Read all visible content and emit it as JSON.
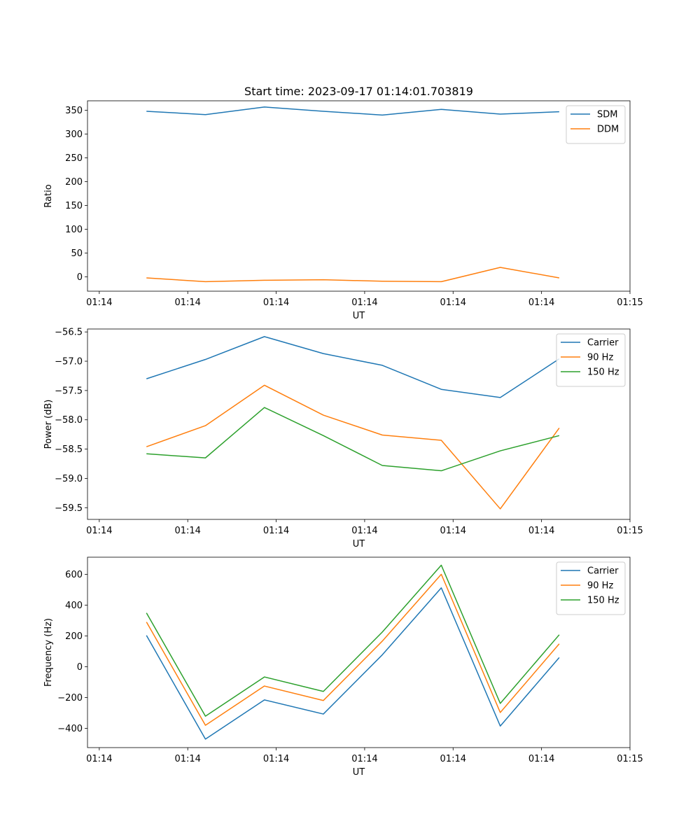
{
  "chart_data": [
    {
      "type": "line",
      "title": "Start time: 2023-09-17 01:14:01.703819",
      "xlabel": "UT",
      "ylabel": "Ratio",
      "x": [
        1,
        2,
        3,
        4,
        5,
        6,
        7,
        8
      ],
      "xlim": [
        0,
        9.2
      ],
      "ylim": [
        -30,
        370
      ],
      "yticks": [
        0,
        50,
        100,
        150,
        200,
        250,
        300,
        350
      ],
      "xticks": [
        0.2,
        1.7,
        3.2,
        4.7,
        6.2,
        7.7,
        9.2
      ],
      "xtick_labels": [
        "01:14",
        "01:14",
        "01:14",
        "01:14",
        "01:14",
        "01:14",
        "01:15"
      ],
      "legend": "top-right",
      "series": [
        {
          "name": "SDM",
          "color": "#1f77b4",
          "values": [
            348,
            341,
            357,
            348,
            340,
            352,
            342,
            347
          ]
        },
        {
          "name": "DDM",
          "color": "#ff7f0e",
          "values": [
            -2,
            -10,
            -7,
            -6,
            -9,
            -10,
            20,
            -2
          ]
        }
      ]
    },
    {
      "type": "line",
      "title": "",
      "xlabel": "UT",
      "ylabel": "Power (dB)",
      "x": [
        1,
        2,
        3,
        4,
        5,
        6,
        7,
        8
      ],
      "xlim": [
        0,
        9.2
      ],
      "ylim": [
        -59.7,
        -56.45
      ],
      "yticks": [
        -59.5,
        -59.0,
        -58.5,
        -58.0,
        -57.5,
        -57.0,
        -56.5
      ],
      "ytick_labels": [
        "−59.5",
        "−59.0",
        "−58.5",
        "−58.0",
        "−57.5",
        "−57.0",
        "−56.5"
      ],
      "xticks": [
        0.2,
        1.7,
        3.2,
        4.7,
        6.2,
        7.7,
        9.2
      ],
      "xtick_labels": [
        "01:14",
        "01:14",
        "01:14",
        "01:14",
        "01:14",
        "01:14",
        "01:15"
      ],
      "legend": "top-right",
      "series": [
        {
          "name": "Carrier",
          "color": "#1f77b4",
          "values": [
            -57.3,
            -56.97,
            -56.58,
            -56.87,
            -57.07,
            -57.48,
            -57.62,
            -56.96
          ]
        },
        {
          "name": "90 Hz",
          "color": "#ff7f0e",
          "values": [
            -58.46,
            -58.1,
            -57.41,
            -57.92,
            -58.26,
            -58.35,
            -59.52,
            -58.14
          ]
        },
        {
          "name": "150 Hz",
          "color": "#2ca02c",
          "values": [
            -58.58,
            -58.65,
            -57.79,
            -58.27,
            -58.78,
            -58.87,
            -58.53,
            -58.27
          ]
        }
      ]
    },
    {
      "type": "line",
      "title": "",
      "xlabel": "UT",
      "ylabel": "Frequency (Hz)",
      "x": [
        1,
        2,
        3,
        4,
        5,
        6,
        7,
        8
      ],
      "xlim": [
        0,
        9.2
      ],
      "ylim": [
        -525,
        712
      ],
      "yticks": [
        -400,
        -200,
        0,
        200,
        400,
        600
      ],
      "ytick_labels": [
        "−400",
        "−200",
        "0",
        "200",
        "400",
        "600"
      ],
      "xticks": [
        0.2,
        1.7,
        3.2,
        4.7,
        6.2,
        7.7,
        9.2
      ],
      "xtick_labels": [
        "01:14",
        "01:14",
        "01:14",
        "01:14",
        "01:14",
        "01:14",
        "01:15"
      ],
      "legend": "top-right",
      "series": [
        {
          "name": "Carrier",
          "color": "#1f77b4",
          "values": [
            204,
            -470,
            -215,
            -307,
            78,
            513,
            -385,
            60
          ]
        },
        {
          "name": "90 Hz",
          "color": "#ff7f0e",
          "values": [
            291,
            -380,
            -125,
            -219,
            167,
            601,
            -297,
            149
          ]
        },
        {
          "name": "150 Hz",
          "color": "#2ca02c",
          "values": [
            350,
            -321,
            -66,
            -160,
            226,
            660,
            -238,
            208
          ]
        }
      ]
    }
  ]
}
